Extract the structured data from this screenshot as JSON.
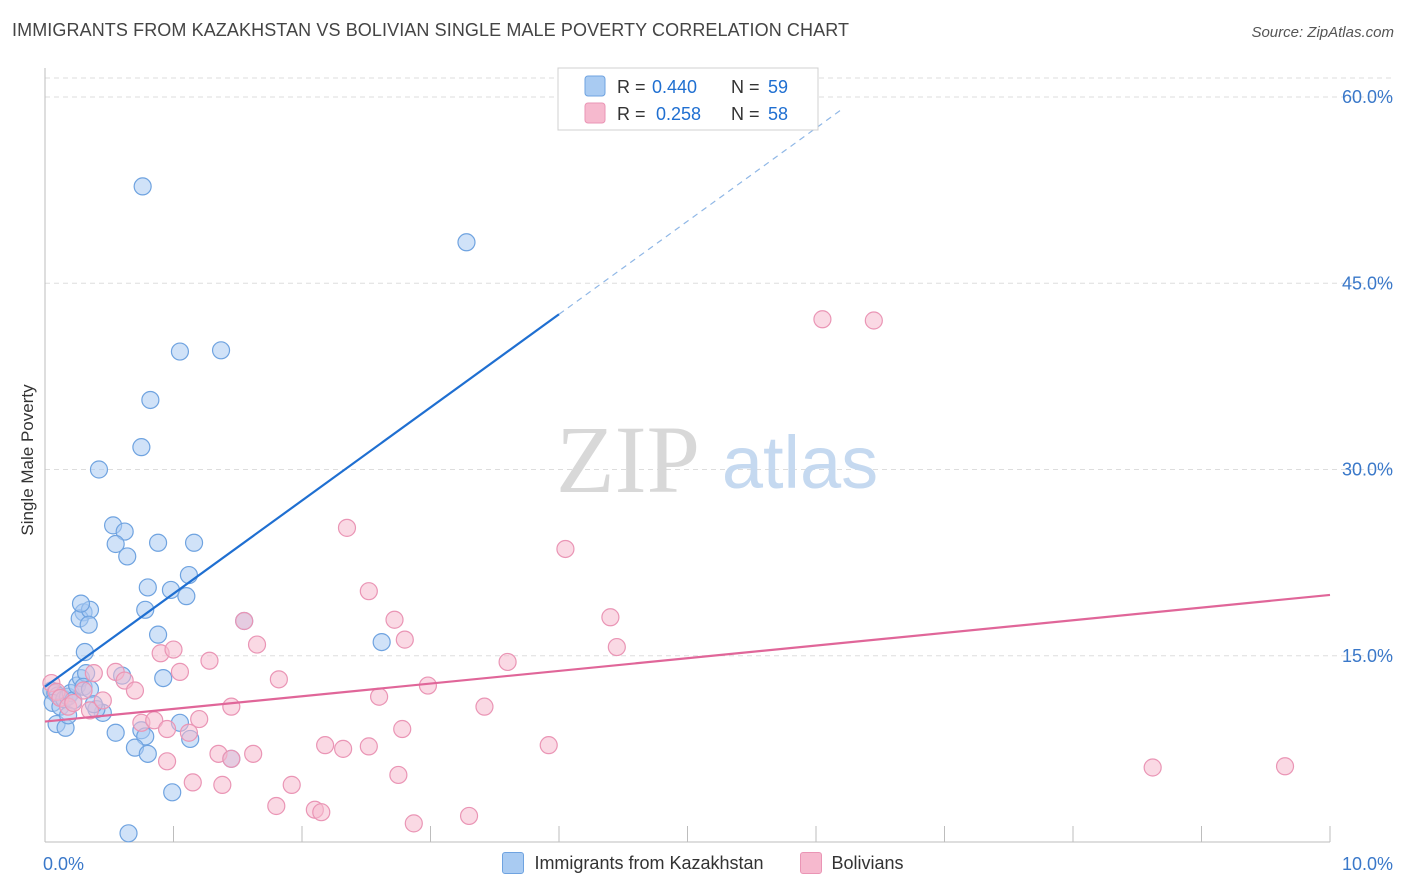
{
  "title": "IMMIGRANTS FROM KAZAKHSTAN VS BOLIVIAN SINGLE MALE POVERTY CORRELATION CHART",
  "source": "Source: ZipAtlas.com",
  "watermark": {
    "zip": "ZIP",
    "atlas": "atlas"
  },
  "colors": {
    "blue": "#1f6fd1",
    "blue_fill": "#a9cbf2",
    "blue_stroke": "#6fa3e0",
    "pink": "#e06699",
    "pink_fill": "#f6b9ce",
    "pink_stroke": "#ea95b5",
    "axis_text": "#3a78c9",
    "grid": "#dddddd"
  },
  "legend": {
    "rows": [
      {
        "r_label": "R =",
        "r_value": "0.440",
        "n_label": "N =",
        "n_value": "59"
      },
      {
        "r_label": "R =",
        "r_value": "0.258",
        "n_label": "N =",
        "n_value": "58"
      }
    ]
  },
  "bottom_legend": [
    "Immigrants from Kazakhstan",
    "Bolivians"
  ],
  "chart_data": {
    "type": "scatter",
    "title": "IMMIGRANTS FROM KAZAKHSTAN VS BOLIVIAN SINGLE MALE POVERTY CORRELATION CHART",
    "xlabel": "",
    "ylabel": "Single Male Poverty",
    "xlim": [
      0,
      10
    ],
    "ylim": [
      0,
      60
    ],
    "x_tick_labels": [
      "0.0%",
      "10.0%"
    ],
    "y_ticks": [
      15,
      30,
      45,
      60
    ],
    "y_tick_labels": [
      "15.0%",
      "30.0%",
      "45.0%",
      "60.0%"
    ],
    "series": [
      {
        "name": "Immigrants from Kazakhstan",
        "r": 0.44,
        "n": 59,
        "trend": {
          "x0": 0.0,
          "y0": 12.5,
          "x1": 4.0,
          "y1": 42.5,
          "dash_to_x": 6.2,
          "dash_to_y": 59.0
        },
        "points": [
          [
            0.05,
            12.2
          ],
          [
            0.08,
            12.0
          ],
          [
            0.1,
            11.8
          ],
          [
            0.06,
            11.2
          ],
          [
            0.12,
            10.9
          ],
          [
            0.15,
            11.5
          ],
          [
            0.18,
            11.7
          ],
          [
            0.2,
            12.0
          ],
          [
            0.22,
            11.4
          ],
          [
            0.09,
            9.5
          ],
          [
            0.16,
            9.2
          ],
          [
            0.18,
            10.2
          ],
          [
            0.25,
            12.6
          ],
          [
            0.28,
            13.2
          ],
          [
            0.32,
            13.6
          ],
          [
            0.3,
            12.5
          ],
          [
            0.35,
            12.3
          ],
          [
            0.3,
            18.5
          ],
          [
            0.27,
            18.0
          ],
          [
            0.35,
            18.7
          ],
          [
            0.28,
            19.2
          ],
          [
            0.34,
            17.5
          ],
          [
            0.31,
            15.3
          ],
          [
            0.42,
            30.0
          ],
          [
            0.53,
            25.5
          ],
          [
            0.62,
            25.0
          ],
          [
            0.55,
            24.0
          ],
          [
            0.64,
            23.0
          ],
          [
            0.75,
            31.8
          ],
          [
            0.82,
            35.6
          ],
          [
            0.88,
            24.1
          ],
          [
            0.78,
            18.7
          ],
          [
            0.8,
            20.5
          ],
          [
            0.88,
            16.7
          ],
          [
            0.92,
            13.2
          ],
          [
            0.98,
            20.3
          ],
          [
            1.1,
            19.8
          ],
          [
            1.12,
            21.5
          ],
          [
            1.16,
            24.1
          ],
          [
            0.75,
            9.0
          ],
          [
            0.78,
            8.5
          ],
          [
            0.7,
            7.6
          ],
          [
            0.8,
            7.1
          ],
          [
            1.05,
            9.6
          ],
          [
            1.13,
            8.3
          ],
          [
            0.99,
            4.0
          ],
          [
            1.05,
            39.5
          ],
          [
            1.37,
            39.6
          ],
          [
            0.76,
            52.8
          ],
          [
            3.28,
            48.3
          ],
          [
            0.65,
            0.7
          ],
          [
            1.45,
            6.7
          ],
          [
            1.55,
            17.8
          ],
          [
            2.62,
            16.1
          ],
          [
            0.6,
            13.4
          ],
          [
            0.45,
            10.4
          ],
          [
            0.4,
            10.7
          ],
          [
            0.55,
            8.8
          ],
          [
            0.38,
            11.1
          ]
        ]
      },
      {
        "name": "Bolivians",
        "r": 0.258,
        "n": 58,
        "trend": {
          "x0": 0.0,
          "y0": 9.7,
          "x1": 10.0,
          "y1": 19.9
        },
        "points": [
          [
            0.05,
            12.8
          ],
          [
            0.09,
            12.1
          ],
          [
            0.12,
            11.6
          ],
          [
            0.18,
            10.9
          ],
          [
            0.22,
            11.2
          ],
          [
            0.3,
            12.2
          ],
          [
            0.35,
            10.6
          ],
          [
            0.38,
            13.6
          ],
          [
            0.45,
            11.4
          ],
          [
            0.55,
            13.7
          ],
          [
            0.62,
            13.0
          ],
          [
            0.7,
            12.2
          ],
          [
            0.75,
            9.6
          ],
          [
            0.85,
            9.8
          ],
          [
            0.9,
            15.2
          ],
          [
            0.95,
            9.1
          ],
          [
            1.0,
            15.5
          ],
          [
            1.05,
            13.7
          ],
          [
            1.12,
            8.8
          ],
          [
            1.2,
            9.9
          ],
          [
            1.28,
            14.6
          ],
          [
            1.45,
            10.9
          ],
          [
            1.55,
            17.8
          ],
          [
            1.65,
            15.9
          ],
          [
            1.82,
            13.1
          ],
          [
            1.35,
            7.1
          ],
          [
            1.45,
            6.7
          ],
          [
            1.62,
            7.1
          ],
          [
            2.18,
            7.8
          ],
          [
            2.32,
            7.5
          ],
          [
            2.52,
            7.7
          ],
          [
            2.6,
            11.7
          ],
          [
            2.78,
            9.1
          ],
          [
            1.15,
            4.8
          ],
          [
            1.38,
            4.6
          ],
          [
            1.92,
            4.6
          ],
          [
            1.8,
            2.9
          ],
          [
            2.1,
            2.6
          ],
          [
            2.15,
            2.4
          ],
          [
            2.98,
            12.6
          ],
          [
            3.3,
            2.1
          ],
          [
            2.87,
            1.5
          ],
          [
            3.42,
            10.9
          ],
          [
            3.6,
            14.5
          ],
          [
            3.92,
            7.8
          ],
          [
            4.05,
            23.6
          ],
          [
            2.35,
            25.3
          ],
          [
            2.52,
            20.2
          ],
          [
            2.72,
            17.9
          ],
          [
            2.8,
            16.3
          ],
          [
            4.4,
            18.1
          ],
          [
            4.45,
            15.7
          ],
          [
            6.05,
            42.1
          ],
          [
            6.45,
            42.0
          ],
          [
            8.62,
            6.0
          ],
          [
            9.65,
            6.1
          ],
          [
            2.75,
            5.4
          ],
          [
            0.95,
            6.5
          ]
        ]
      }
    ]
  }
}
